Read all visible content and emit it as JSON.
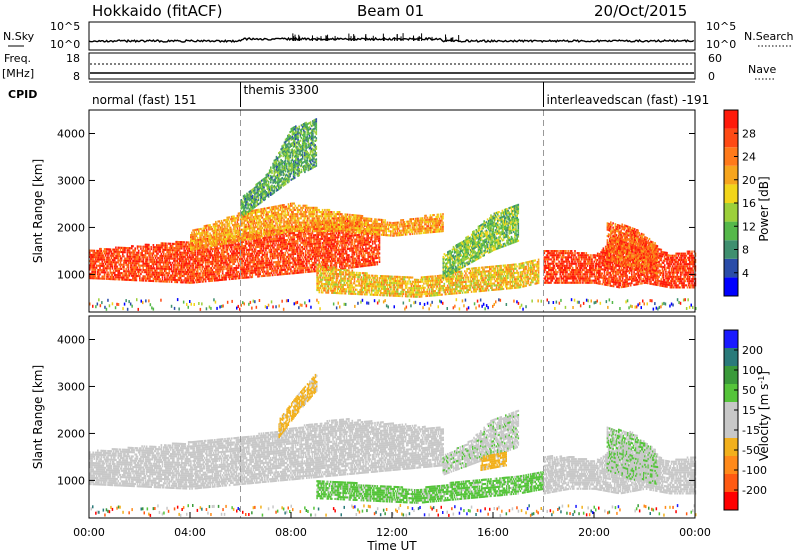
{
  "header": {
    "radar": "Hokkaido (fitACF)",
    "beam": "Beam 01",
    "date": "20/Oct/2015"
  },
  "noise_panel": {
    "left_label": "N.Sky",
    "right_label": "N.Search",
    "left_ticks": [
      "10^5",
      "10^0"
    ],
    "right_ticks": [
      "10^5",
      "10^0"
    ]
  },
  "freq_panel": {
    "left_label": "Freq.",
    "left_unit": "[MHz]",
    "left_ticks": [
      "18",
      "8"
    ],
    "right_label": "Nave",
    "right_ticks": [
      "60",
      "0"
    ]
  },
  "cpid_panel": {
    "label": "CPID",
    "modes": [
      {
        "name": "normal (fast) 151",
        "start_hour": 0,
        "end_hour": 6
      },
      {
        "name": "themis 3300",
        "start_hour": 6,
        "end_hour": 18
      },
      {
        "name": "interleavedscan (fast) -191",
        "start_hour": 18,
        "end_hour": 24
      }
    ]
  },
  "chart_data": [
    {
      "type": "heatmap",
      "title": "",
      "xlabel": "",
      "ylabel": "Slant Range [km]",
      "xlim": [
        0,
        24
      ],
      "ylim": [
        200,
        4500
      ],
      "yticks": [
        1000,
        2000,
        3000,
        4000
      ],
      "colorbar": {
        "label": "Power [dB]",
        "ticks": [
          "4",
          "8",
          "12",
          "16",
          "20",
          "24",
          "28"
        ],
        "range": [
          0,
          30
        ],
        "colors": [
          "#0000ff",
          "#2a4ca8",
          "#3f8f6f",
          "#55b84a",
          "#9ccf3a",
          "#f2d51a",
          "#f6a51d",
          "#ff7a1a",
          "#ff4a14",
          "#ff1a0a"
        ]
      },
      "regions": [
        {
          "x": [
            0,
            2,
            4,
            6,
            8,
            10,
            11.5
          ],
          "y_low": [
            900,
            850,
            800,
            900,
            1000,
            1100,
            1200
          ],
          "y_high": [
            1500,
            1600,
            1700,
            1800,
            2000,
            2200,
            2000
          ],
          "value": 26
        },
        {
          "x": [
            4,
            6,
            8,
            10,
            12,
            14
          ],
          "y_low": [
            1500,
            1700,
            1900,
            1900,
            1800,
            1900
          ],
          "y_high": [
            1900,
            2300,
            2500,
            2300,
            2100,
            2300
          ],
          "value": 20
        },
        {
          "x": [
            9,
            11,
            13,
            15,
            17,
            17.8
          ],
          "y_low": [
            600,
            550,
            500,
            600,
            700,
            800
          ],
          "y_high": [
            1200,
            1000,
            900,
            1100,
            1200,
            1300
          ],
          "value": 18
        },
        {
          "x": [
            14,
            15,
            16,
            17
          ],
          "y_low": [
            900,
            1200,
            1500,
            1700
          ],
          "y_high": [
            1400,
            1800,
            2300,
            2500
          ],
          "value": 12
        },
        {
          "x": [
            18,
            19,
            20,
            21,
            22,
            23,
            24
          ],
          "y_low": [
            800,
            800,
            800,
            700,
            800,
            700,
            700
          ],
          "y_high": [
            1500,
            1500,
            1400,
            1800,
            1700,
            1400,
            1500
          ],
          "value": 27
        },
        {
          "x": [
            20.5,
            21.5,
            22.5
          ],
          "y_low": [
            1300,
            1100,
            900
          ],
          "y_high": [
            2100,
            2000,
            1600
          ],
          "value": 24
        },
        {
          "x": [
            6,
            7,
            8,
            9
          ],
          "y_low": [
            2200,
            2600,
            3000,
            3300
          ],
          "y_high": [
            2600,
            3100,
            4100,
            4300
          ],
          "value": 10
        }
      ]
    },
    {
      "type": "heatmap",
      "title": "",
      "xlabel": "Time UT",
      "ylabel": "Slant Range [km]",
      "xlim": [
        0,
        24
      ],
      "ylim": [
        200,
        4500
      ],
      "yticks": [
        1000,
        2000,
        3000,
        4000
      ],
      "xticks": [
        "00:00",
        "04:00",
        "08:00",
        "12:00",
        "16:00",
        "20:00",
        "00:00"
      ],
      "colorbar": {
        "label": "Velocity [m s^-1]",
        "ticks": [
          "200",
          "100",
          "50",
          "15",
          "-15",
          "-50",
          "-100",
          "-200"
        ],
        "range": [
          -250,
          250
        ],
        "colors": [
          "#ff0000",
          "#ff5a12",
          "#ff8a1a",
          "#f2b01c",
          "#c8c8c8",
          "#c8c8c8",
          "#55c43a",
          "#3a9a3a",
          "#2a7a7a",
          "#1a1aff"
        ]
      },
      "regions": [
        {
          "x": [
            0,
            2,
            4,
            6,
            8,
            10,
            12,
            14
          ],
          "y_low": [
            900,
            850,
            800,
            900,
            1000,
            1100,
            1200,
            1300
          ],
          "y_high": [
            1600,
            1700,
            1800,
            1900,
            2100,
            2300,
            2200,
            2100
          ],
          "value": 0
        },
        {
          "x": [
            9,
            11,
            13,
            15,
            17,
            18
          ],
          "y_low": [
            600,
            550,
            500,
            600,
            700,
            800
          ],
          "y_high": [
            1000,
            900,
            800,
            1000,
            1100,
            1200
          ],
          "value": 60
        },
        {
          "x": [
            14,
            15,
            16,
            17
          ],
          "y_low": [
            1100,
            1300,
            1500,
            1700
          ],
          "y_high": [
            1500,
            1800,
            2300,
            2500
          ],
          "value": 40
        },
        {
          "x": [
            18,
            19,
            20,
            21,
            22,
            23,
            24
          ],
          "y_low": [
            700,
            800,
            800,
            700,
            800,
            700,
            700
          ],
          "y_high": [
            1500,
            1500,
            1400,
            1700,
            1600,
            1400,
            1500
          ],
          "value": 0
        },
        {
          "x": [
            20.5,
            21.5,
            22.5
          ],
          "y_low": [
            1200,
            1000,
            900
          ],
          "y_high": [
            2100,
            2000,
            1600
          ],
          "value": 45
        },
        {
          "x": [
            7.5,
            8.2,
            9
          ],
          "y_low": [
            1900,
            2400,
            2900
          ],
          "y_high": [
            2300,
            2800,
            3300
          ],
          "value": -60
        },
        {
          "x": [
            15.5,
            16.5
          ],
          "y_low": [
            1200,
            1300
          ],
          "y_high": [
            1500,
            1600
          ],
          "value": -60
        }
      ]
    }
  ]
}
